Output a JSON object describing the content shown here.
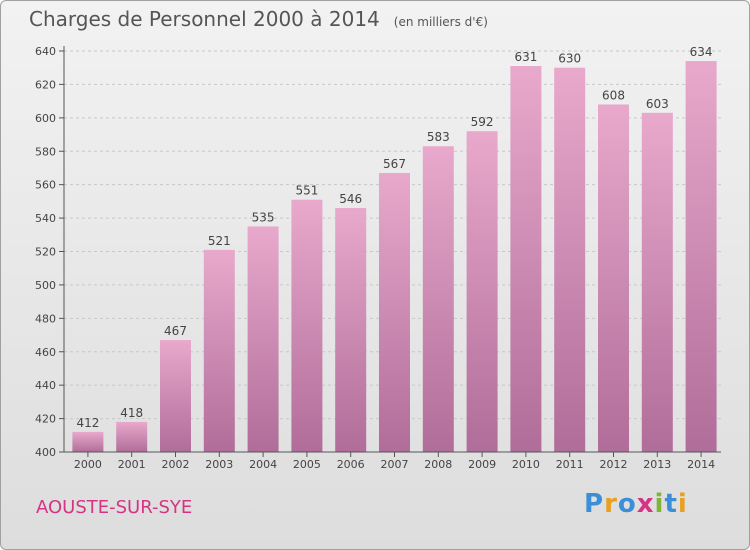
{
  "title": "Charges de Personnel 2000 à 2014",
  "subtitle": "(en milliers d'€)",
  "city": "AOUSTE-SUR-SYE",
  "logo": "Proxiti",
  "colors": {
    "bar_top": "#e8a9cc",
    "bar_bottom": "#b06d99",
    "grid": "#c8c8c8",
    "axis": "#555555"
  },
  "chart_data": {
    "type": "bar",
    "title": "Charges de Personnel 2000 à 2014",
    "subtitle": "(en milliers d'€)",
    "xlabel": "",
    "ylabel": "",
    "categories": [
      "2000",
      "2001",
      "2002",
      "2003",
      "2004",
      "2005",
      "2006",
      "2007",
      "2008",
      "2009",
      "2010",
      "2011",
      "2012",
      "2013",
      "2014"
    ],
    "values": [
      412,
      418,
      467,
      521,
      535,
      551,
      546,
      567,
      583,
      592,
      631,
      630,
      608,
      603,
      634
    ],
    "ylim": [
      400,
      640
    ],
    "yticks": [
      400,
      420,
      440,
      460,
      480,
      500,
      520,
      540,
      560,
      580,
      600,
      620,
      640
    ],
    "grid": true
  }
}
